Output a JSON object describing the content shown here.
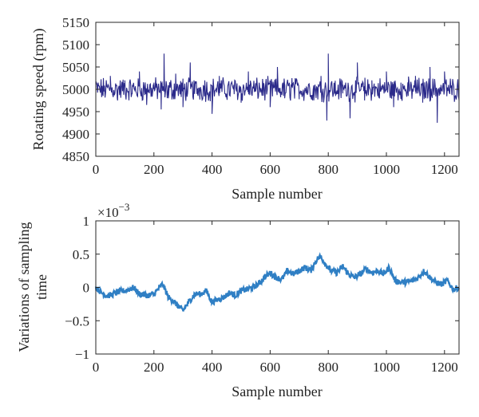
{
  "chart_data": [
    {
      "type": "line",
      "xlabel": "Sample number",
      "ylabel": "Rotating speed (rpm)",
      "xlim": [
        0,
        1250
      ],
      "ylim": [
        4850,
        5150
      ],
      "xticks": [
        0,
        200,
        400,
        600,
        800,
        1000,
        1200
      ],
      "yticks": [
        4850,
        4900,
        4950,
        5000,
        5050,
        5100,
        5150
      ],
      "grid": false,
      "series": [
        {
          "color": "#2b2a8a",
          "description_mean": 5000,
          "x": [
            0,
            25,
            50,
            75,
            100,
            125,
            150,
            175,
            200,
            225,
            235,
            250,
            275,
            300,
            325,
            350,
            375,
            400,
            425,
            450,
            475,
            500,
            525,
            550,
            575,
            600,
            625,
            650,
            675,
            700,
            725,
            750,
            775,
            795,
            800,
            825,
            850,
            875,
            900,
            925,
            950,
            975,
            1000,
            1025,
            1050,
            1075,
            1100,
            1125,
            1150,
            1175,
            1200,
            1225,
            1250
          ],
          "y": [
            5010,
            4985,
            5030,
            4975,
            5020,
            4990,
            5040,
            4965,
            5015,
            4955,
            5080,
            4980,
            5035,
            4960,
            5060,
            4990,
            5020,
            4945,
            5030,
            4985,
            5010,
            4970,
            5040,
            4995,
            5015,
            4960,
            5050,
            4980,
            5025,
            4990,
            5005,
            4975,
            5030,
            4930,
            5080,
            4985,
            5010,
            4935,
            5060,
            4975,
            5020,
            4990,
            5040,
            4960,
            5015,
            4985,
            5030,
            4970,
            5050,
            4925,
            5040,
            4990,
            4975
          ]
        }
      ]
    },
    {
      "type": "line",
      "xlabel": "Sample number",
      "ylabel": "Variations of sampling time",
      "multiplier": "×10",
      "exponent": "−3",
      "xlim": [
        0,
        1250
      ],
      "ylim": [
        -1,
        1
      ],
      "xticks": [
        0,
        200,
        400,
        600,
        800,
        1000,
        1200
      ],
      "yticks": [
        -1,
        -0.5,
        0,
        0.5,
        1
      ],
      "grid": false,
      "series": [
        {
          "color": "#2f7fc4",
          "x": [
            0,
            20,
            40,
            60,
            80,
            100,
            130,
            150,
            180,
            200,
            230,
            250,
            270,
            300,
            320,
            340,
            360,
            380,
            400,
            420,
            440,
            460,
            480,
            500,
            520,
            540,
            560,
            580,
            600,
            620,
            640,
            660,
            680,
            700,
            720,
            740,
            760,
            775,
            790,
            810,
            830,
            850,
            870,
            890,
            910,
            930,
            950,
            970,
            990,
            1010,
            1030,
            1050,
            1070,
            1090,
            1110,
            1130,
            1150,
            1170,
            1190,
            1210,
            1230,
            1250
          ],
          "y": [
            0.0,
            -0.08,
            -0.13,
            -0.1,
            -0.06,
            -0.05,
            0.0,
            -0.1,
            -0.12,
            -0.1,
            0.05,
            -0.15,
            -0.22,
            -0.35,
            -0.22,
            -0.1,
            -0.1,
            -0.05,
            -0.22,
            -0.18,
            -0.15,
            -0.08,
            -0.12,
            -0.05,
            -0.03,
            0.0,
            0.05,
            0.15,
            0.22,
            0.15,
            0.12,
            0.25,
            0.2,
            0.25,
            0.3,
            0.25,
            0.42,
            0.47,
            0.35,
            0.25,
            0.22,
            0.32,
            0.2,
            0.15,
            0.2,
            0.28,
            0.22,
            0.25,
            0.2,
            0.3,
            0.1,
            0.08,
            0.08,
            0.1,
            0.15,
            0.25,
            0.15,
            0.08,
            0.05,
            0.1,
            -0.03,
            0.0
          ]
        }
      ]
    }
  ]
}
